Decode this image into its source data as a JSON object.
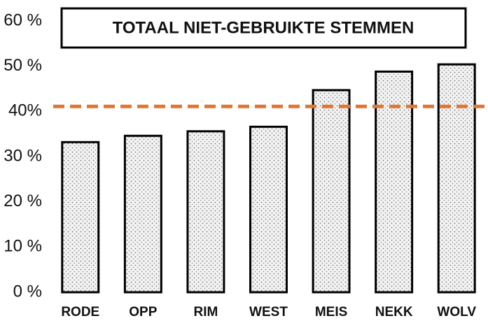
{
  "chart_data": {
    "type": "bar",
    "title": "TOTAAL NIET-GEBRUIKTE STEMMEN",
    "categories": [
      "RODE",
      "OPP",
      "RIM",
      "WEST",
      "MEIS",
      "NEKK",
      "WOLV"
    ],
    "values": [
      33.2,
      34.6,
      35.6,
      36.6,
      44.7,
      48.8,
      50.4
    ],
    "color": "#9a9a9a",
    "reference_line": 41.1,
    "reference_color": "#e07535",
    "ylim": [
      0,
      60
    ],
    "yticks": [
      {
        "value": 0,
        "label": "0 %"
      },
      {
        "value": 10,
        "label": "10 %"
      },
      {
        "value": 20,
        "label": "20 %"
      },
      {
        "value": 30,
        "label": "30 %"
      },
      {
        "value": 40,
        "label": "40%"
      },
      {
        "value": 50,
        "label": "50 %"
      },
      {
        "value": 60,
        "label": "60 %"
      }
    ],
    "grid": false
  }
}
